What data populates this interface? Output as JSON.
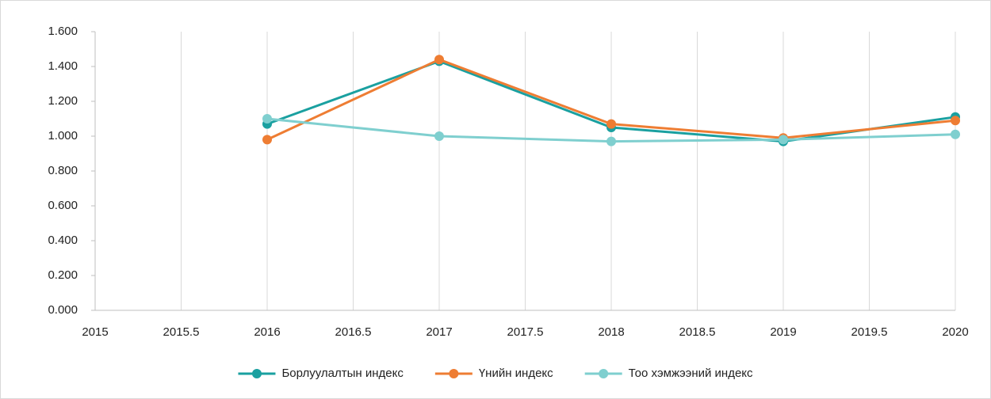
{
  "chart_data": {
    "type": "line",
    "x": [
      2016,
      2017,
      2018,
      2019,
      2020
    ],
    "series": [
      {
        "name": "Борлуулалтын индекс",
        "color": "#1aa0a0",
        "values": [
          1.07,
          1.43,
          1.05,
          0.97,
          1.11
        ]
      },
      {
        "name": "Үнийн индекс",
        "color": "#ee7d33",
        "values": [
          0.98,
          1.44,
          1.07,
          0.99,
          1.09
        ]
      },
      {
        "name": "Тоо хэмжээний индекс",
        "color": "#7fcfcf",
        "values": [
          1.1,
          1.0,
          0.97,
          0.98,
          1.01
        ]
      }
    ],
    "xlim": [
      2015,
      2020
    ],
    "xticks": [
      2015,
      2015.5,
      2016,
      2016.5,
      2017,
      2017.5,
      2018,
      2018.5,
      2019,
      2019.5,
      2020
    ],
    "ylim": [
      0,
      1.6
    ],
    "yticks": [
      {
        "value": 0,
        "label": "0.000"
      },
      {
        "value": 0.2,
        "label": "0.200"
      },
      {
        "value": 0.4,
        "label": "0.400"
      },
      {
        "value": 0.6,
        "label": "0.600"
      },
      {
        "value": 0.8,
        "label": "0.800"
      },
      {
        "value": 1.0,
        "label": "1.000"
      },
      {
        "value": 1.2,
        "label": "1.200"
      },
      {
        "value": 1.4,
        "label": "1.400"
      },
      {
        "value": 1.6,
        "label": "1.600"
      }
    ],
    "grid": true,
    "legend": "bottom"
  }
}
